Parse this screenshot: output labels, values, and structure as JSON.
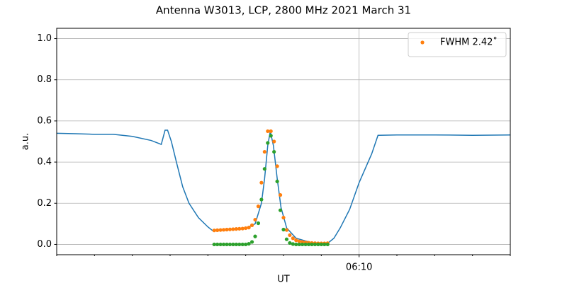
{
  "chart_data": {
    "type": "line",
    "title": "Antenna W3013, LCP, 2800 MHz 2021 March 31",
    "xlabel": "UT",
    "ylabel": "a.u.",
    "xlim": [
      "06:02",
      "06:14"
    ],
    "xticks": [
      "06:10"
    ],
    "xminorticks": [
      "06:02",
      "06:03",
      "06:04",
      "06:05",
      "06:06",
      "06:07",
      "06:08",
      "06:09",
      "06:11",
      "06:12",
      "06:13",
      "06:14"
    ],
    "ylim": [
      -0.05,
      1.05
    ],
    "yticks": [
      {
        "value": 0,
        "label": "0.0"
      },
      0.2,
      0.4,
      0.6,
      0.8,
      {
        "value": 1,
        "label": "1.0"
      }
    ],
    "grid": true,
    "legend": "upper right",
    "series": [
      {
        "kind": "line",
        "color": "#1f77b4",
        "x": [
          "06:02:00",
          "06:02:30",
          "06:03:00",
          "06:03:30",
          "06:04:00",
          "06:04:30",
          "06:04:46",
          "06:04:52",
          "06:04:56",
          "06:05:02",
          "06:05:10",
          "06:05:20",
          "06:05:30",
          "06:05:45",
          "06:06:00",
          "06:06:07",
          "06:06:30",
          "06:07:00",
          "06:07:15",
          "06:07:25",
          "06:07:30",
          "06:07:35",
          "06:07:39",
          "06:07:44",
          "06:07:50",
          "06:07:56",
          "06:08:05",
          "06:08:20",
          "06:08:45",
          "06:09:10",
          "06:09:20",
          "06:09:30",
          "06:09:45",
          "06:10:00",
          "06:10:10",
          "06:10:20",
          "06:10:30",
          "06:11:00",
          "06:12:00",
          "06:13:00",
          "06:14:00"
        ],
        "values": [
          0.54,
          0.538,
          0.535,
          0.535,
          0.525,
          0.505,
          0.486,
          0.555,
          0.555,
          0.5,
          0.4,
          0.28,
          0.2,
          0.13,
          0.085,
          0.068,
          0.072,
          0.078,
          0.1,
          0.2,
          0.32,
          0.48,
          0.55,
          0.48,
          0.32,
          0.18,
          0.08,
          0.03,
          0.008,
          0.005,
          0.03,
          0.08,
          0.17,
          0.3,
          0.37,
          0.44,
          0.53,
          0.532,
          0.532,
          0.53,
          0.532
        ]
      },
      {
        "kind": "scatter",
        "name": "FWHM 2.42˚",
        "color": "#ff7f0e",
        "x": [
          "06:06:10",
          "06:06:15",
          "06:06:20",
          "06:06:25",
          "06:06:30",
          "06:06:35",
          "06:06:40",
          "06:06:45",
          "06:06:50",
          "06:06:55",
          "06:07:00",
          "06:07:05",
          "06:07:10",
          "06:07:15",
          "06:07:20",
          "06:07:25",
          "06:07:30",
          "06:07:35",
          "06:07:40",
          "06:07:45",
          "06:07:50",
          "06:07:55",
          "06:08:00",
          "06:08:05",
          "06:08:10",
          "06:08:15",
          "06:08:20",
          "06:08:25",
          "06:08:30",
          "06:08:35",
          "06:08:40",
          "06:08:45",
          "06:08:50",
          "06:08:55",
          "06:09:00",
          "06:09:05",
          "06:09:10"
        ],
        "values": [
          0.068,
          0.069,
          0.07,
          0.071,
          0.072,
          0.073,
          0.074,
          0.075,
          0.076,
          0.077,
          0.079,
          0.082,
          0.093,
          0.12,
          0.185,
          0.3,
          0.45,
          0.55,
          0.55,
          0.5,
          0.38,
          0.24,
          0.13,
          0.07,
          0.045,
          0.03,
          0.02,
          0.015,
          0.012,
          0.01,
          0.008,
          0.007,
          0.006,
          0.005,
          0.005,
          0.005,
          0.006
        ]
      },
      {
        "kind": "scatter",
        "color": "#2ca02c",
        "x": [
          "06:06:10",
          "06:06:15",
          "06:06:20",
          "06:06:25",
          "06:06:30",
          "06:06:35",
          "06:06:40",
          "06:06:45",
          "06:06:50",
          "06:06:55",
          "06:07:00",
          "06:07:05",
          "06:07:10",
          "06:07:15",
          "06:07:20",
          "06:07:25",
          "06:07:30",
          "06:07:35",
          "06:07:40",
          "06:07:45",
          "06:07:50",
          "06:07:55",
          "06:08:00",
          "06:08:05",
          "06:08:10",
          "06:08:15",
          "06:08:20",
          "06:08:25",
          "06:08:30",
          "06:08:35",
          "06:08:40",
          "06:08:45",
          "06:08:50",
          "06:08:55",
          "06:09:00",
          "06:09:05",
          "06:09:10"
        ],
        "values": [
          0,
          0,
          0,
          0,
          0,
          0,
          0,
          0,
          0,
          0,
          0,
          0.003,
          0.012,
          0.039,
          0.103,
          0.218,
          0.367,
          0.493,
          0.528,
          0.45,
          0.306,
          0.166,
          0.072,
          0.025,
          0.007,
          0.002,
          0,
          0,
          0,
          0,
          0,
          0,
          0,
          0,
          0,
          0,
          0
        ]
      }
    ]
  }
}
